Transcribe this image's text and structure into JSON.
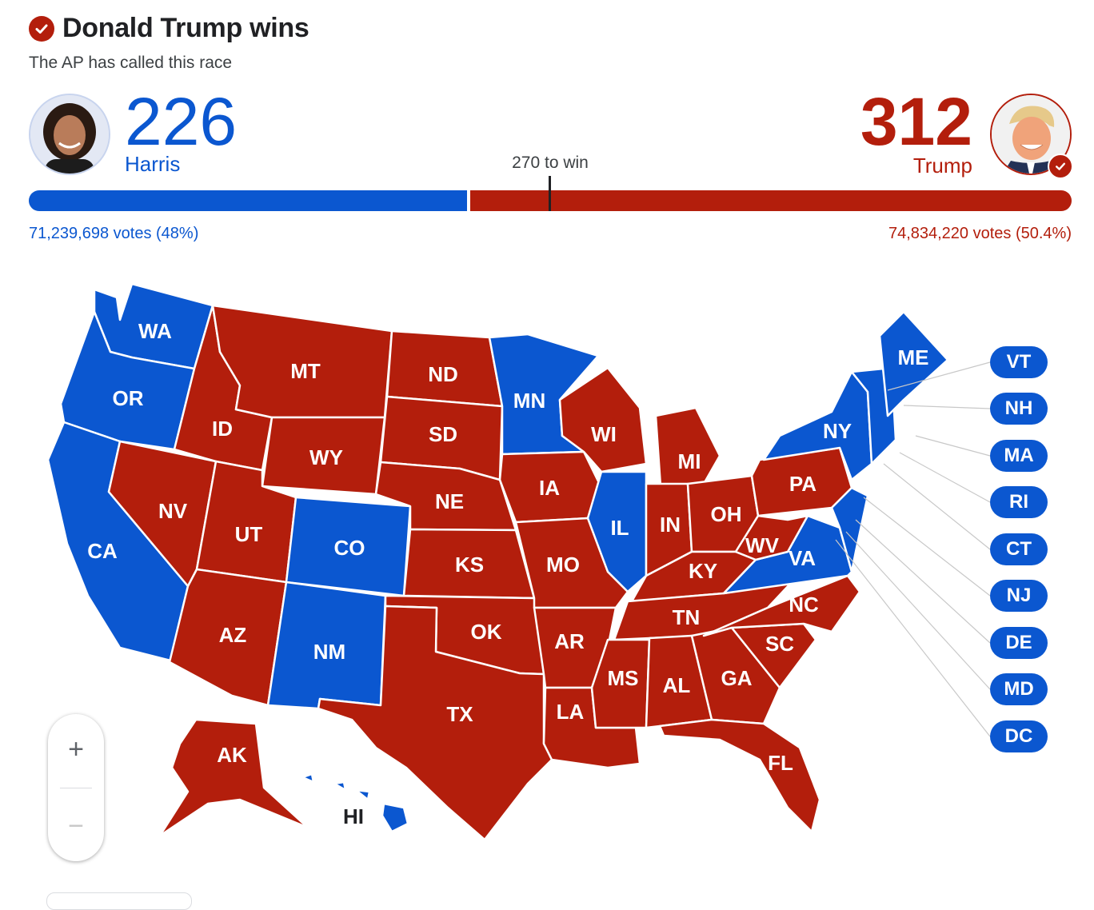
{
  "header": {
    "title": "Donald Trump wins",
    "subtitle": "The AP has called this race"
  },
  "colors": {
    "democrat": "#0b57d0",
    "republican": "#b31e0c"
  },
  "candidates": {
    "harris": {
      "name": "Harris",
      "electoral_votes": "226",
      "popular_votes": "71,239,698 votes (48%)"
    },
    "trump": {
      "name": "Trump",
      "electoral_votes": "312",
      "popular_votes": "74,834,220 votes (50.4%)",
      "winner": true
    }
  },
  "threshold": {
    "label": "270 to win",
    "value": 270,
    "total": 538
  },
  "icons": {
    "winner": "check-circle-icon",
    "zoom_in": "plus-icon",
    "zoom_out": "minus-icon"
  },
  "states": {
    "WA": {
      "label": "WA",
      "winner": "harris"
    },
    "OR": {
      "label": "OR",
      "winner": "harris"
    },
    "CA": {
      "label": "CA",
      "winner": "harris"
    },
    "NV": {
      "label": "NV",
      "winner": "trump"
    },
    "ID": {
      "label": "ID",
      "winner": "trump"
    },
    "MT": {
      "label": "MT",
      "winner": "trump"
    },
    "WY": {
      "label": "WY",
      "winner": "trump"
    },
    "UT": {
      "label": "UT",
      "winner": "trump"
    },
    "AZ": {
      "label": "AZ",
      "winner": "trump"
    },
    "CO": {
      "label": "CO",
      "winner": "harris"
    },
    "NM": {
      "label": "NM",
      "winner": "harris"
    },
    "ND": {
      "label": "ND",
      "winner": "trump"
    },
    "SD": {
      "label": "SD",
      "winner": "trump"
    },
    "NE": {
      "label": "NE",
      "winner": "trump"
    },
    "KS": {
      "label": "KS",
      "winner": "trump"
    },
    "OK": {
      "label": "OK",
      "winner": "trump"
    },
    "TX": {
      "label": "TX",
      "winner": "trump"
    },
    "MN": {
      "label": "MN",
      "winner": "harris"
    },
    "IA": {
      "label": "IA",
      "winner": "trump"
    },
    "MO": {
      "label": "MO",
      "winner": "trump"
    },
    "AR": {
      "label": "AR",
      "winner": "trump"
    },
    "LA": {
      "label": "LA",
      "winner": "trump"
    },
    "WI": {
      "label": "WI",
      "winner": "trump"
    },
    "IL": {
      "label": "IL",
      "winner": "harris"
    },
    "MI": {
      "label": "MI",
      "winner": "trump"
    },
    "IN": {
      "label": "IN",
      "winner": "trump"
    },
    "OH": {
      "label": "OH",
      "winner": "trump"
    },
    "KY": {
      "label": "KY",
      "winner": "trump"
    },
    "TN": {
      "label": "TN",
      "winner": "trump"
    },
    "MS": {
      "label": "MS",
      "winner": "trump"
    },
    "AL": {
      "label": "AL",
      "winner": "trump"
    },
    "GA": {
      "label": "GA",
      "winner": "trump"
    },
    "FL": {
      "label": "FL",
      "winner": "trump"
    },
    "SC": {
      "label": "SC",
      "winner": "trump"
    },
    "NC": {
      "label": "NC",
      "winner": "trump"
    },
    "VA": {
      "label": "VA",
      "winner": "harris"
    },
    "WV": {
      "label": "WV",
      "winner": "trump"
    },
    "PA": {
      "label": "PA",
      "winner": "trump"
    },
    "NY": {
      "label": "NY",
      "winner": "harris"
    },
    "ME": {
      "label": "ME",
      "winner": "harris"
    },
    "AK": {
      "label": "AK",
      "winner": "trump"
    },
    "HI": {
      "label": "HI",
      "winner": "harris"
    }
  },
  "small_states": [
    {
      "label": "VT",
      "winner": "harris"
    },
    {
      "label": "NH",
      "winner": "harris"
    },
    {
      "label": "MA",
      "winner": "harris"
    },
    {
      "label": "RI",
      "winner": "harris"
    },
    {
      "label": "CT",
      "winner": "harris"
    },
    {
      "label": "NJ",
      "winner": "harris"
    },
    {
      "label": "DE",
      "winner": "harris"
    },
    {
      "label": "MD",
      "winner": "harris"
    },
    {
      "label": "DC",
      "winner": "harris"
    }
  ],
  "zoom": {
    "in_label": "+",
    "out_label": "−"
  }
}
